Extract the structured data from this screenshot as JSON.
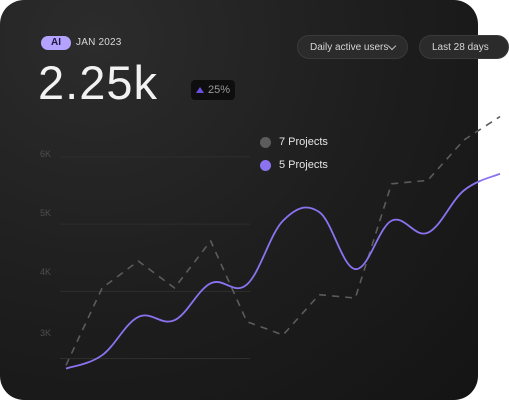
{
  "header": {
    "badge": "AI",
    "date": "JAN 2023",
    "value": "2.25k",
    "delta": "25%"
  },
  "controls": {
    "metric": "Daily active users",
    "range": "Last 28 days"
  },
  "colors": {
    "series_7": "#5c5c5c",
    "series_5": "#8b73f0",
    "badge": "#b3a3ff",
    "delta_arrow": "#6a4fe0"
  },
  "icons": {
    "delta": "triangle-up-icon",
    "dropdown": "chevron-down-icon"
  },
  "chart_data": {
    "type": "line",
    "yticks": [
      "6K",
      "5K",
      "4K",
      "3K"
    ],
    "ylim": [
      2800,
      6400
    ],
    "grid": true,
    "legend": "top-center",
    "series": [
      {
        "name": "7 Projects",
        "style": "dashed",
        "values": [
          2900,
          4050,
          4450,
          4050,
          4750,
          3550,
          3350,
          3950,
          3900,
          5600,
          5650,
          6250,
          6600
        ]
      },
      {
        "name": "5 Projects",
        "style": "solid",
        "values": [
          2850,
          3050,
          3620,
          3570,
          4120,
          4100,
          5050,
          5180,
          4330,
          5050,
          4870,
          5500,
          5750
        ]
      }
    ]
  }
}
